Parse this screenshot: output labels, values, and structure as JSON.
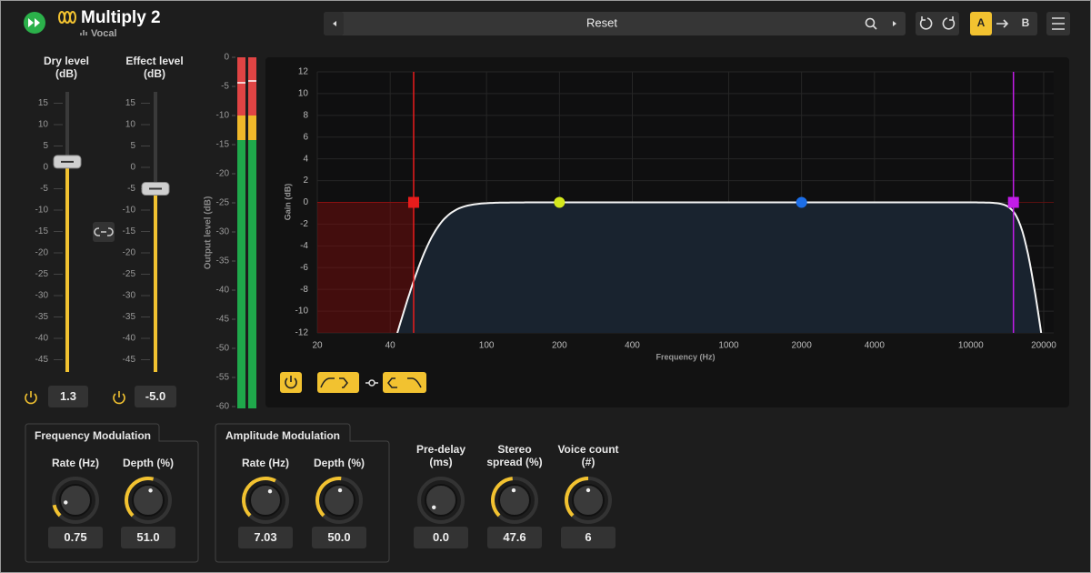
{
  "header": {
    "title": "Multiply 2",
    "preset_category": "Vocal",
    "preset": "Reset",
    "ab": [
      "A",
      "B"
    ]
  },
  "faders": [
    {
      "label": "Dry level (dB)",
      "value": 1.3
    },
    {
      "label": "Effect level (dB)",
      "value": -5,
      "value_label": "-5.0"
    }
  ],
  "fader_ticks": [
    15,
    10,
    5,
    0,
    -5,
    -10,
    -15,
    -20,
    -25,
    -30,
    -35,
    -40,
    -45
  ],
  "meter": {
    "label": "Output level (dB)",
    "ticks": [
      0,
      -5,
      -10,
      -15,
      -20,
      -25,
      -30,
      -35,
      -40,
      -45,
      -50,
      -55,
      -60
    ]
  },
  "eq": {
    "ylabel": "Gain (dB)",
    "xlabel": "Frequency (Hz)",
    "log_x": true,
    "xlim": [
      20,
      22000
    ],
    "ylim": [
      -12,
      12
    ],
    "xticks": [
      20,
      40,
      100,
      200,
      400,
      1000,
      2000,
      4000,
      10000,
      20000
    ],
    "yticks": [
      12,
      10,
      8,
      6,
      4,
      2,
      0,
      -2,
      -4,
      -6,
      -8,
      -10,
      -12
    ],
    "nodes": [
      {
        "freq": 50,
        "gain": 0,
        "color": "#e81c1c",
        "shape": "square"
      },
      {
        "freq": 200,
        "gain": 0,
        "color": "#d4e81c",
        "shape": "circle"
      },
      {
        "freq": 2000,
        "gain": 0,
        "color": "#1c6ee8",
        "shape": "circle"
      },
      {
        "freq": 15000,
        "gain": 0,
        "color": "#c21ce8",
        "shape": "square"
      }
    ]
  },
  "modulation": [
    {
      "title": "Frequency Modulation",
      "knobs": [
        {
          "label": "Rate (Hz)",
          "value": 0.75
        },
        {
          "label": "Depth (%)",
          "value": 51,
          "value_label": "51.0"
        }
      ]
    },
    {
      "title": "Amplitude Modulation",
      "knobs": [
        {
          "label": "Rate (Hz)",
          "value": 7.03
        },
        {
          "label": "Depth (%)",
          "value": 50,
          "value_label": "50.0"
        }
      ]
    }
  ],
  "knobs": [
    {
      "label": "Pre-delay (ms)",
      "value": 0,
      "value_label": "0.0"
    },
    {
      "label": "Stereo spread (%)",
      "value": 47.6
    },
    {
      "label": "Voice count (#)",
      "value": 6
    }
  ]
}
